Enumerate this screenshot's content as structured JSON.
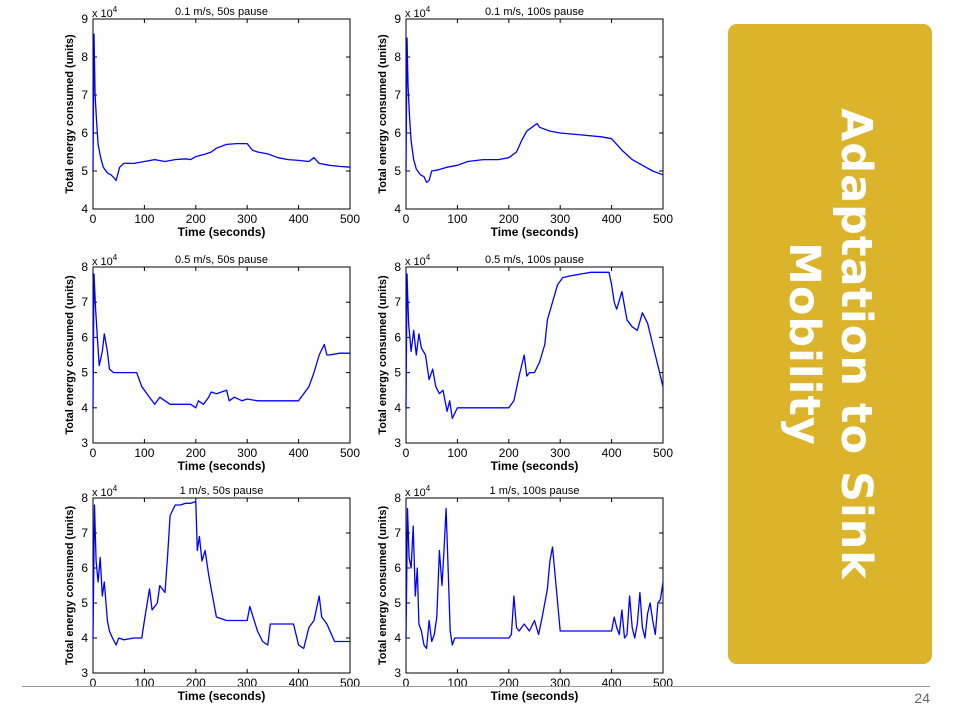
{
  "slide": {
    "title_line1": "Adaptation to Sink",
    "title_line2": "Mobility",
    "page_number": "24",
    "panel_color": "#dbb42c"
  },
  "chart_data": [
    {
      "type": "line",
      "title": "0.1 m/s, 50s pause",
      "xlabel": "Time (seconds)",
      "ylabel": "Total energy consumed (units)",
      "multiplier": "x 10^4",
      "xlim": [
        0,
        500
      ],
      "ylim": [
        4,
        9
      ],
      "xticks": [
        0,
        100,
        200,
        300,
        400,
        500
      ],
      "yticks": [
        4,
        5,
        6,
        7,
        8,
        9
      ],
      "series": [
        {
          "color": "#0000ff",
          "x": [
            0,
            2,
            4,
            7,
            10,
            15,
            20,
            28,
            35,
            42,
            45,
            52,
            60,
            80,
            100,
            120,
            140,
            160,
            180,
            190,
            200,
            220,
            230,
            240,
            260,
            280,
            300,
            310,
            320,
            340,
            360,
            380,
            400,
            420,
            430,
            440,
            460,
            480,
            500
          ],
          "y": [
            5.0,
            8.6,
            7.0,
            6.3,
            5.7,
            5.35,
            5.1,
            4.95,
            4.9,
            4.8,
            4.75,
            5.1,
            5.2,
            5.2,
            5.25,
            5.3,
            5.25,
            5.3,
            5.32,
            5.3,
            5.38,
            5.45,
            5.5,
            5.6,
            5.7,
            5.72,
            5.72,
            5.55,
            5.5,
            5.45,
            5.35,
            5.3,
            5.28,
            5.25,
            5.35,
            5.2,
            5.15,
            5.12,
            5.1
          ]
        }
      ]
    },
    {
      "type": "line",
      "title": "0.1 m/s, 100s pause",
      "xlabel": "Time (seconds)",
      "ylabel": "Total energy consumed (units)",
      "multiplier": "x 10^4",
      "xlim": [
        0,
        500
      ],
      "ylim": [
        4,
        9
      ],
      "xticks": [
        0,
        100,
        200,
        300,
        400,
        500
      ],
      "yticks": [
        4,
        5,
        6,
        7,
        8,
        9
      ],
      "series": [
        {
          "color": "#0000ff",
          "x": [
            0,
            2,
            4,
            7,
            10,
            15,
            20,
            28,
            35,
            40,
            45,
            50,
            60,
            80,
            100,
            120,
            150,
            180,
            200,
            215,
            225,
            235,
            245,
            255,
            260,
            270,
            280,
            300,
            340,
            380,
            400,
            420,
            440,
            460,
            480,
            500
          ],
          "y": [
            5.0,
            8.5,
            7.2,
            6.4,
            5.8,
            5.3,
            5.05,
            4.9,
            4.85,
            4.7,
            4.75,
            5.0,
            5.02,
            5.1,
            5.15,
            5.25,
            5.3,
            5.3,
            5.35,
            5.5,
            5.8,
            6.05,
            6.15,
            6.25,
            6.15,
            6.1,
            6.05,
            6.0,
            5.95,
            5.9,
            5.85,
            5.55,
            5.3,
            5.15,
            5.0,
            4.9
          ]
        }
      ]
    },
    {
      "type": "line",
      "title": "0.5 m/s, 50s pause",
      "xlabel": "Time (seconds)",
      "ylabel": "Total energy consumed (units)",
      "multiplier": "x 10^4",
      "xlim": [
        0,
        500
      ],
      "ylim": [
        3,
        8
      ],
      "xticks": [
        0,
        100,
        200,
        300,
        400,
        500
      ],
      "yticks": [
        3,
        4,
        5,
        6,
        7,
        8
      ],
      "series": [
        {
          "color": "#0000ff",
          "x": [
            0,
            2,
            5,
            9,
            12,
            18,
            22,
            28,
            32,
            40,
            50,
            70,
            85,
            95,
            100,
            110,
            120,
            130,
            140,
            150,
            160,
            190,
            200,
            205,
            215,
            225,
            230,
            240,
            250,
            260,
            265,
            275,
            290,
            300,
            320,
            340,
            360,
            380,
            400,
            410,
            420,
            430,
            440,
            450,
            455,
            460,
            480,
            500
          ],
          "y": [
            4.0,
            7.8,
            6.8,
            5.9,
            5.2,
            5.6,
            6.1,
            5.6,
            5.1,
            5.0,
            5.0,
            5.0,
            5.0,
            4.6,
            4.5,
            4.3,
            4.1,
            4.3,
            4.2,
            4.1,
            4.1,
            4.1,
            4.0,
            4.2,
            4.1,
            4.3,
            4.45,
            4.4,
            4.45,
            4.5,
            4.2,
            4.3,
            4.2,
            4.25,
            4.2,
            4.2,
            4.2,
            4.2,
            4.2,
            4.4,
            4.6,
            5.0,
            5.5,
            5.8,
            5.5,
            5.5,
            5.55,
            5.55
          ]
        }
      ]
    },
    {
      "type": "line",
      "title": "0.5 m/s, 100s pause",
      "xlabel": "Time (seconds)",
      "ylabel": "Total energy consumed (units)",
      "multiplier": "x 10^4",
      "xlim": [
        0,
        500
      ],
      "ylim": [
        3,
        8
      ],
      "xticks": [
        0,
        100,
        200,
        300,
        400,
        500
      ],
      "yticks": [
        3,
        4,
        5,
        6,
        7,
        8
      ],
      "series": [
        {
          "color": "#0000ff",
          "x": [
            0,
            2,
            5,
            10,
            15,
            20,
            25,
            30,
            38,
            45,
            52,
            58,
            65,
            72,
            80,
            85,
            90,
            100,
            120,
            150,
            180,
            200,
            210,
            220,
            230,
            235,
            240,
            250,
            260,
            270,
            275,
            285,
            295,
            305,
            320,
            340,
            360,
            380,
            395,
            400,
            405,
            410,
            420,
            430,
            440,
            450,
            460,
            470,
            480,
            490,
            500
          ],
          "y": [
            4.0,
            7.8,
            6.4,
            5.6,
            6.2,
            5.5,
            6.1,
            5.7,
            5.5,
            4.8,
            5.1,
            4.6,
            4.4,
            4.5,
            3.9,
            4.2,
            3.7,
            4.0,
            4.0,
            4.0,
            4.0,
            4.0,
            4.2,
            4.9,
            5.5,
            4.9,
            5.0,
            5.0,
            5.3,
            5.8,
            6.5,
            7.0,
            7.5,
            7.7,
            7.75,
            7.8,
            7.85,
            7.85,
            7.85,
            7.5,
            7.0,
            6.8,
            7.3,
            6.5,
            6.3,
            6.2,
            6.7,
            6.4,
            5.8,
            5.2,
            4.6
          ]
        }
      ]
    },
    {
      "type": "line",
      "title": "1 m/s, 50s pause",
      "xlabel": "Time (seconds)",
      "ylabel": "Total energy consumed (units)",
      "multiplier": "x 10^4",
      "xlim": [
        0,
        500
      ],
      "ylim": [
        3,
        8
      ],
      "xticks": [
        0,
        100,
        200,
        300,
        400,
        500
      ],
      "yticks": [
        3,
        4,
        5,
        6,
        7,
        8
      ],
      "series": [
        {
          "color": "#0000ff",
          "x": [
            0,
            3,
            6,
            10,
            14,
            18,
            22,
            28,
            32,
            38,
            45,
            50,
            60,
            80,
            95,
            100,
            110,
            115,
            125,
            130,
            140,
            145,
            150,
            160,
            170,
            180,
            190,
            200,
            203,
            207,
            212,
            218,
            225,
            230,
            240,
            260,
            280,
            300,
            305,
            320,
            330,
            340,
            345,
            355,
            370,
            390,
            400,
            410,
            420,
            430,
            440,
            445,
            455,
            470,
            490,
            500
          ],
          "y": [
            4.0,
            7.8,
            6.2,
            5.6,
            6.3,
            5.2,
            5.6,
            4.5,
            4.2,
            4.0,
            3.8,
            4.0,
            3.95,
            4.0,
            4.0,
            4.5,
            5.4,
            4.8,
            5.0,
            5.5,
            5.3,
            6.3,
            7.5,
            7.8,
            7.8,
            7.85,
            7.85,
            7.9,
            6.5,
            6.9,
            6.2,
            6.5,
            5.8,
            5.4,
            4.6,
            4.5,
            4.5,
            4.5,
            4.9,
            4.2,
            3.9,
            3.8,
            4.4,
            4.4,
            4.4,
            4.4,
            3.8,
            3.7,
            4.3,
            4.5,
            5.2,
            4.6,
            4.4,
            3.9,
            3.9,
            3.9
          ]
        }
      ]
    },
    {
      "type": "line",
      "title": "1 m/s, 100s pause",
      "xlabel": "Time (seconds)",
      "ylabel": "Total energy consumed (units)",
      "multiplier": "x 10^4",
      "xlim": [
        0,
        500
      ],
      "ylim": [
        3,
        8
      ],
      "xticks": [
        0,
        100,
        200,
        300,
        400,
        500
      ],
      "yticks": [
        3,
        4,
        5,
        6,
        7,
        8
      ],
      "series": [
        {
          "color": "#0000ff",
          "x": [
            0,
            3,
            6,
            10,
            14,
            18,
            22,
            25,
            30,
            35,
            40,
            45,
            50,
            55,
            60,
            65,
            70,
            74,
            78,
            82,
            86,
            90,
            95,
            100,
            120,
            150,
            180,
            200,
            205,
            210,
            215,
            220,
            230,
            240,
            250,
            258,
            265,
            275,
            280,
            285,
            290,
            300,
            310,
            320,
            340,
            360,
            380,
            400,
            405,
            410,
            415,
            420,
            425,
            430,
            435,
            440,
            445,
            450,
            455,
            460,
            465,
            470,
            475,
            480,
            485,
            490,
            495,
            500
          ],
          "y": [
            4.0,
            7.7,
            6.3,
            6.0,
            7.2,
            5.2,
            6.0,
            4.4,
            4.2,
            3.8,
            3.7,
            4.5,
            3.9,
            4.1,
            4.6,
            6.5,
            5.5,
            6.5,
            7.7,
            6.0,
            4.2,
            3.8,
            4.0,
            4.0,
            4.0,
            4.0,
            4.0,
            4.0,
            4.1,
            5.2,
            4.3,
            4.2,
            4.4,
            4.2,
            4.5,
            4.1,
            4.6,
            5.4,
            6.2,
            6.6,
            5.8,
            4.2,
            4.2,
            4.2,
            4.2,
            4.2,
            4.2,
            4.2,
            4.6,
            4.3,
            4.1,
            4.8,
            4.0,
            4.1,
            5.2,
            4.3,
            4.0,
            4.4,
            5.3,
            4.3,
            4.0,
            4.7,
            5.0,
            4.5,
            4.1,
            5.0,
            5.1,
            5.6
          ]
        }
      ]
    }
  ]
}
